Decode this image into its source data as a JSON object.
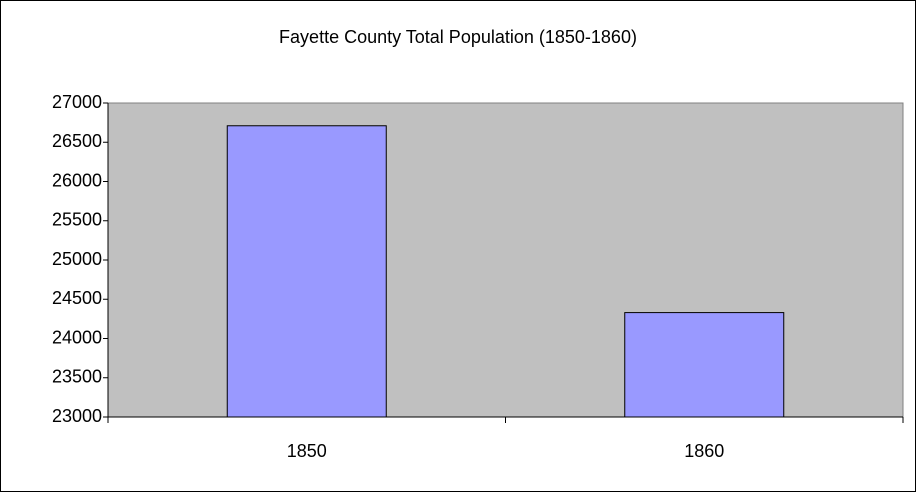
{
  "chart_data": {
    "type": "bar",
    "title": "Fayette County Total Population (1850-1860)",
    "categories": [
      "1850",
      "1860"
    ],
    "values": [
      26710,
      24330
    ],
    "color": "#9999ff",
    "plot_background": "#c0c0c0",
    "ylim": [
      23000,
      27000
    ],
    "yticks": [
      23000,
      23500,
      24000,
      24500,
      25000,
      25500,
      26000,
      26500,
      27000
    ],
    "grid": false
  }
}
